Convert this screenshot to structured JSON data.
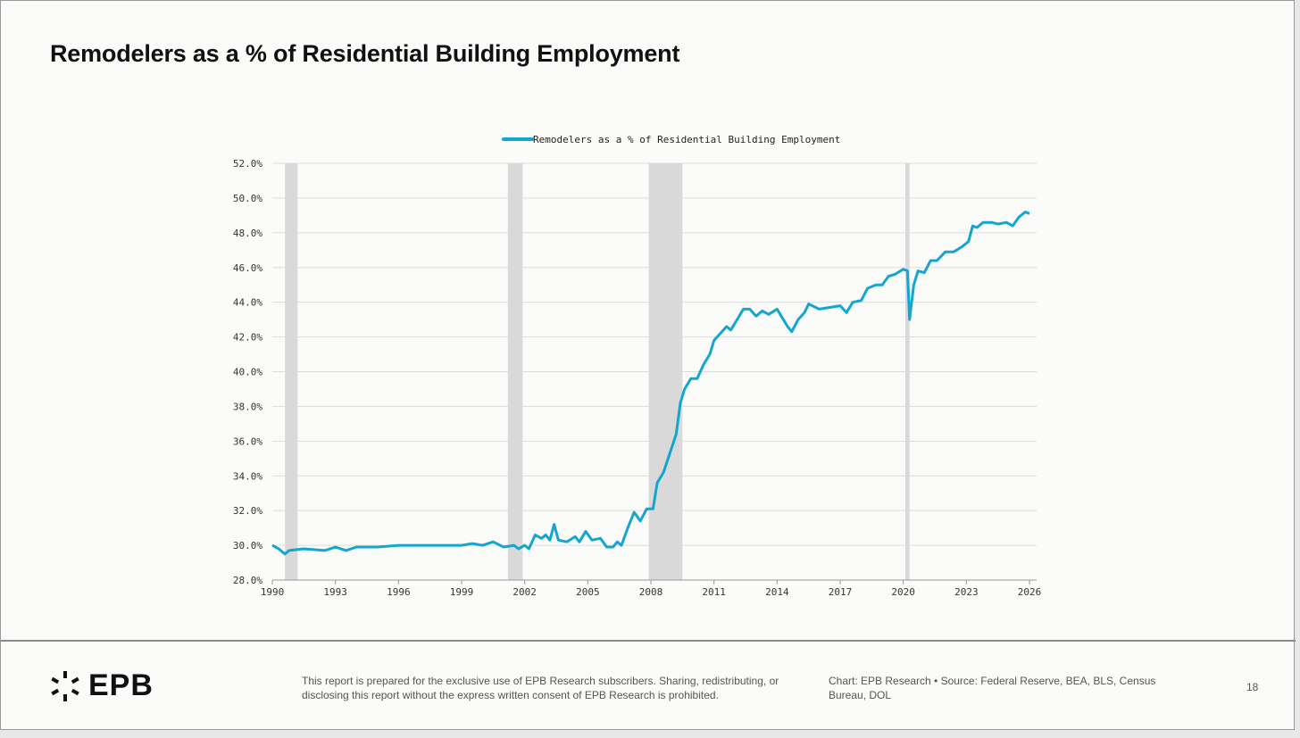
{
  "title": "Remodelers as a % of Residential Building Employment",
  "colors": {
    "line": "#13a6cf",
    "recession": "#d9d9d9",
    "grid": "#dcdcdc"
  },
  "chart_data": {
    "type": "line",
    "title": "Remodelers as a % of Residential Building Employment",
    "legend": {
      "label": "Remodelers as a % of Residential Building Employment",
      "placement": "top-center"
    },
    "xlabel": "",
    "ylabel": "",
    "xlim": [
      1990,
      2026
    ],
    "ylim": [
      28,
      52
    ],
    "x_ticks": [
      "1990",
      "1993",
      "1996",
      "1999",
      "2002",
      "2005",
      "2008",
      "2011",
      "2014",
      "2017",
      "2020",
      "2023",
      "2026"
    ],
    "y_ticks": [
      "28.0%",
      "30.0%",
      "32.0%",
      "34.0%",
      "36.0%",
      "38.0%",
      "40.0%",
      "42.0%",
      "44.0%",
      "46.0%",
      "48.0%",
      "50.0%",
      "52.0%"
    ],
    "grid": true,
    "recessions": [
      [
        1990.6,
        1991.2
      ],
      [
        2001.2,
        2001.9
      ],
      [
        2007.9,
        2009.5
      ],
      [
        2020.1,
        2020.3
      ]
    ],
    "series": [
      {
        "name": "Remodelers as a % of Residential Building Employment",
        "x": [
          1990.0,
          1990.3,
          1990.6,
          1990.8,
          1991.5,
          1992.5,
          1993,
          1993.5,
          1994,
          1995,
          1996,
          1997,
          1998,
          1999,
          1999.5,
          2000,
          2000.5,
          2001,
          2001.5,
          2001.7,
          2002,
          2002.2,
          2002.5,
          2002.8,
          2003,
          2003.2,
          2003.4,
          2003.6,
          2004,
          2004.4,
          2004.6,
          2004.9,
          2005.2,
          2005.6,
          2005.9,
          2006.2,
          2006.4,
          2006.6,
          2006.9,
          2007.2,
          2007.5,
          2007.8,
          2008.1,
          2008.3,
          2008.6,
          2008.9,
          2009.2,
          2009.4,
          2009.6,
          2009.9,
          2010.2,
          2010.5,
          2010.8,
          2011.0,
          2011.3,
          2011.6,
          2011.8,
          2012.1,
          2012.4,
          2012.7,
          2013,
          2013.3,
          2013.6,
          2014,
          2014.2,
          2014.5,
          2014.7,
          2015,
          2015.3,
          2015.5,
          2016,
          2016.5,
          2017,
          2017.3,
          2017.6,
          2018,
          2018.3,
          2018.7,
          2019,
          2019.3,
          2019.6,
          2020,
          2020.2,
          2020.3,
          2020.5,
          2020.7,
          2021,
          2021.3,
          2021.6,
          2022,
          2022.4,
          2022.8,
          2023.1,
          2023.3,
          2023.5,
          2023.8,
          2024.2,
          2024.5,
          2024.9,
          2025.2,
          2025.5,
          2025.8,
          2026.0
        ],
        "values": [
          30.0,
          29.8,
          29.5,
          29.7,
          29.8,
          29.7,
          29.9,
          29.7,
          29.9,
          29.9,
          30.0,
          30.0,
          30.0,
          30.0,
          30.1,
          30.0,
          30.2,
          29.9,
          30.0,
          29.8,
          30.0,
          29.8,
          30.6,
          30.4,
          30.6,
          30.3,
          31.2,
          30.3,
          30.2,
          30.5,
          30.2,
          30.8,
          30.3,
          30.4,
          29.9,
          29.9,
          30.2,
          30.0,
          31.0,
          31.9,
          31.4,
          32.1,
          32.1,
          33.6,
          34.2,
          35.3,
          36.4,
          38.2,
          39.0,
          39.6,
          39.6,
          40.4,
          41.0,
          41.8,
          42.2,
          42.6,
          42.4,
          43.0,
          43.6,
          43.6,
          43.2,
          43.5,
          43.3,
          43.6,
          43.2,
          42.6,
          42.3,
          43.0,
          43.4,
          43.9,
          43.6,
          43.7,
          43.8,
          43.4,
          44.0,
          44.1,
          44.8,
          45.0,
          45.0,
          45.5,
          45.6,
          45.9,
          45.8,
          43.0,
          45.0,
          45.8,
          45.7,
          46.4,
          46.4,
          46.9,
          46.9,
          47.2,
          47.5,
          48.4,
          48.3,
          48.6,
          48.6,
          48.5,
          48.6,
          48.4,
          48.9,
          49.2,
          49.1
        ]
      }
    ]
  },
  "footer": {
    "logo": "EPB",
    "disclaimer": "This report is prepared for the exclusive use of EPB Research subscribers. Sharing, redistributing, or disclosing this report without the express written consent of EPB Research is prohibited.",
    "source": "Chart: EPB Research  •  Source: Federal Reserve, BEA, BLS, Census Bureau, DOL",
    "page_number": "18"
  }
}
